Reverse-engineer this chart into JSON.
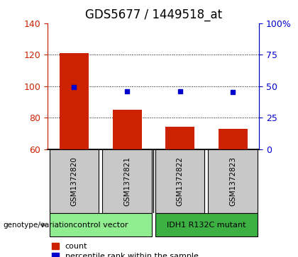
{
  "title": "GDS5677 / 1449518_at",
  "samples": [
    "GSM1372820",
    "GSM1372821",
    "GSM1372822",
    "GSM1372823"
  ],
  "counts": [
    121,
    85,
    74,
    73
  ],
  "percentiles": [
    49,
    46,
    46,
    45
  ],
  "ylim_left": [
    60,
    140
  ],
  "ylim_right": [
    0,
    100
  ],
  "yticks_left": [
    60,
    80,
    100,
    120,
    140
  ],
  "yticks_right": [
    0,
    25,
    50,
    75,
    100
  ],
  "yticklabels_right": [
    "0",
    "25",
    "50",
    "75",
    "100%"
  ],
  "groups": [
    {
      "label": "control vector",
      "indices": [
        0,
        1
      ],
      "color": "#90EE90"
    },
    {
      "label": "IDH1 R132C mutant",
      "indices": [
        2,
        3
      ],
      "color": "#3CB043"
    }
  ],
  "bar_color": "#CC2200",
  "dot_color": "#0000CC",
  "bar_width": 0.55,
  "sample_box_color": "#C8C8C8",
  "title_fontsize": 12,
  "tick_fontsize": 9,
  "legend_fontsize": 8,
  "genotype_label": "genotype/variation",
  "legend_count": "count",
  "legend_percentile": "percentile rank within the sample"
}
